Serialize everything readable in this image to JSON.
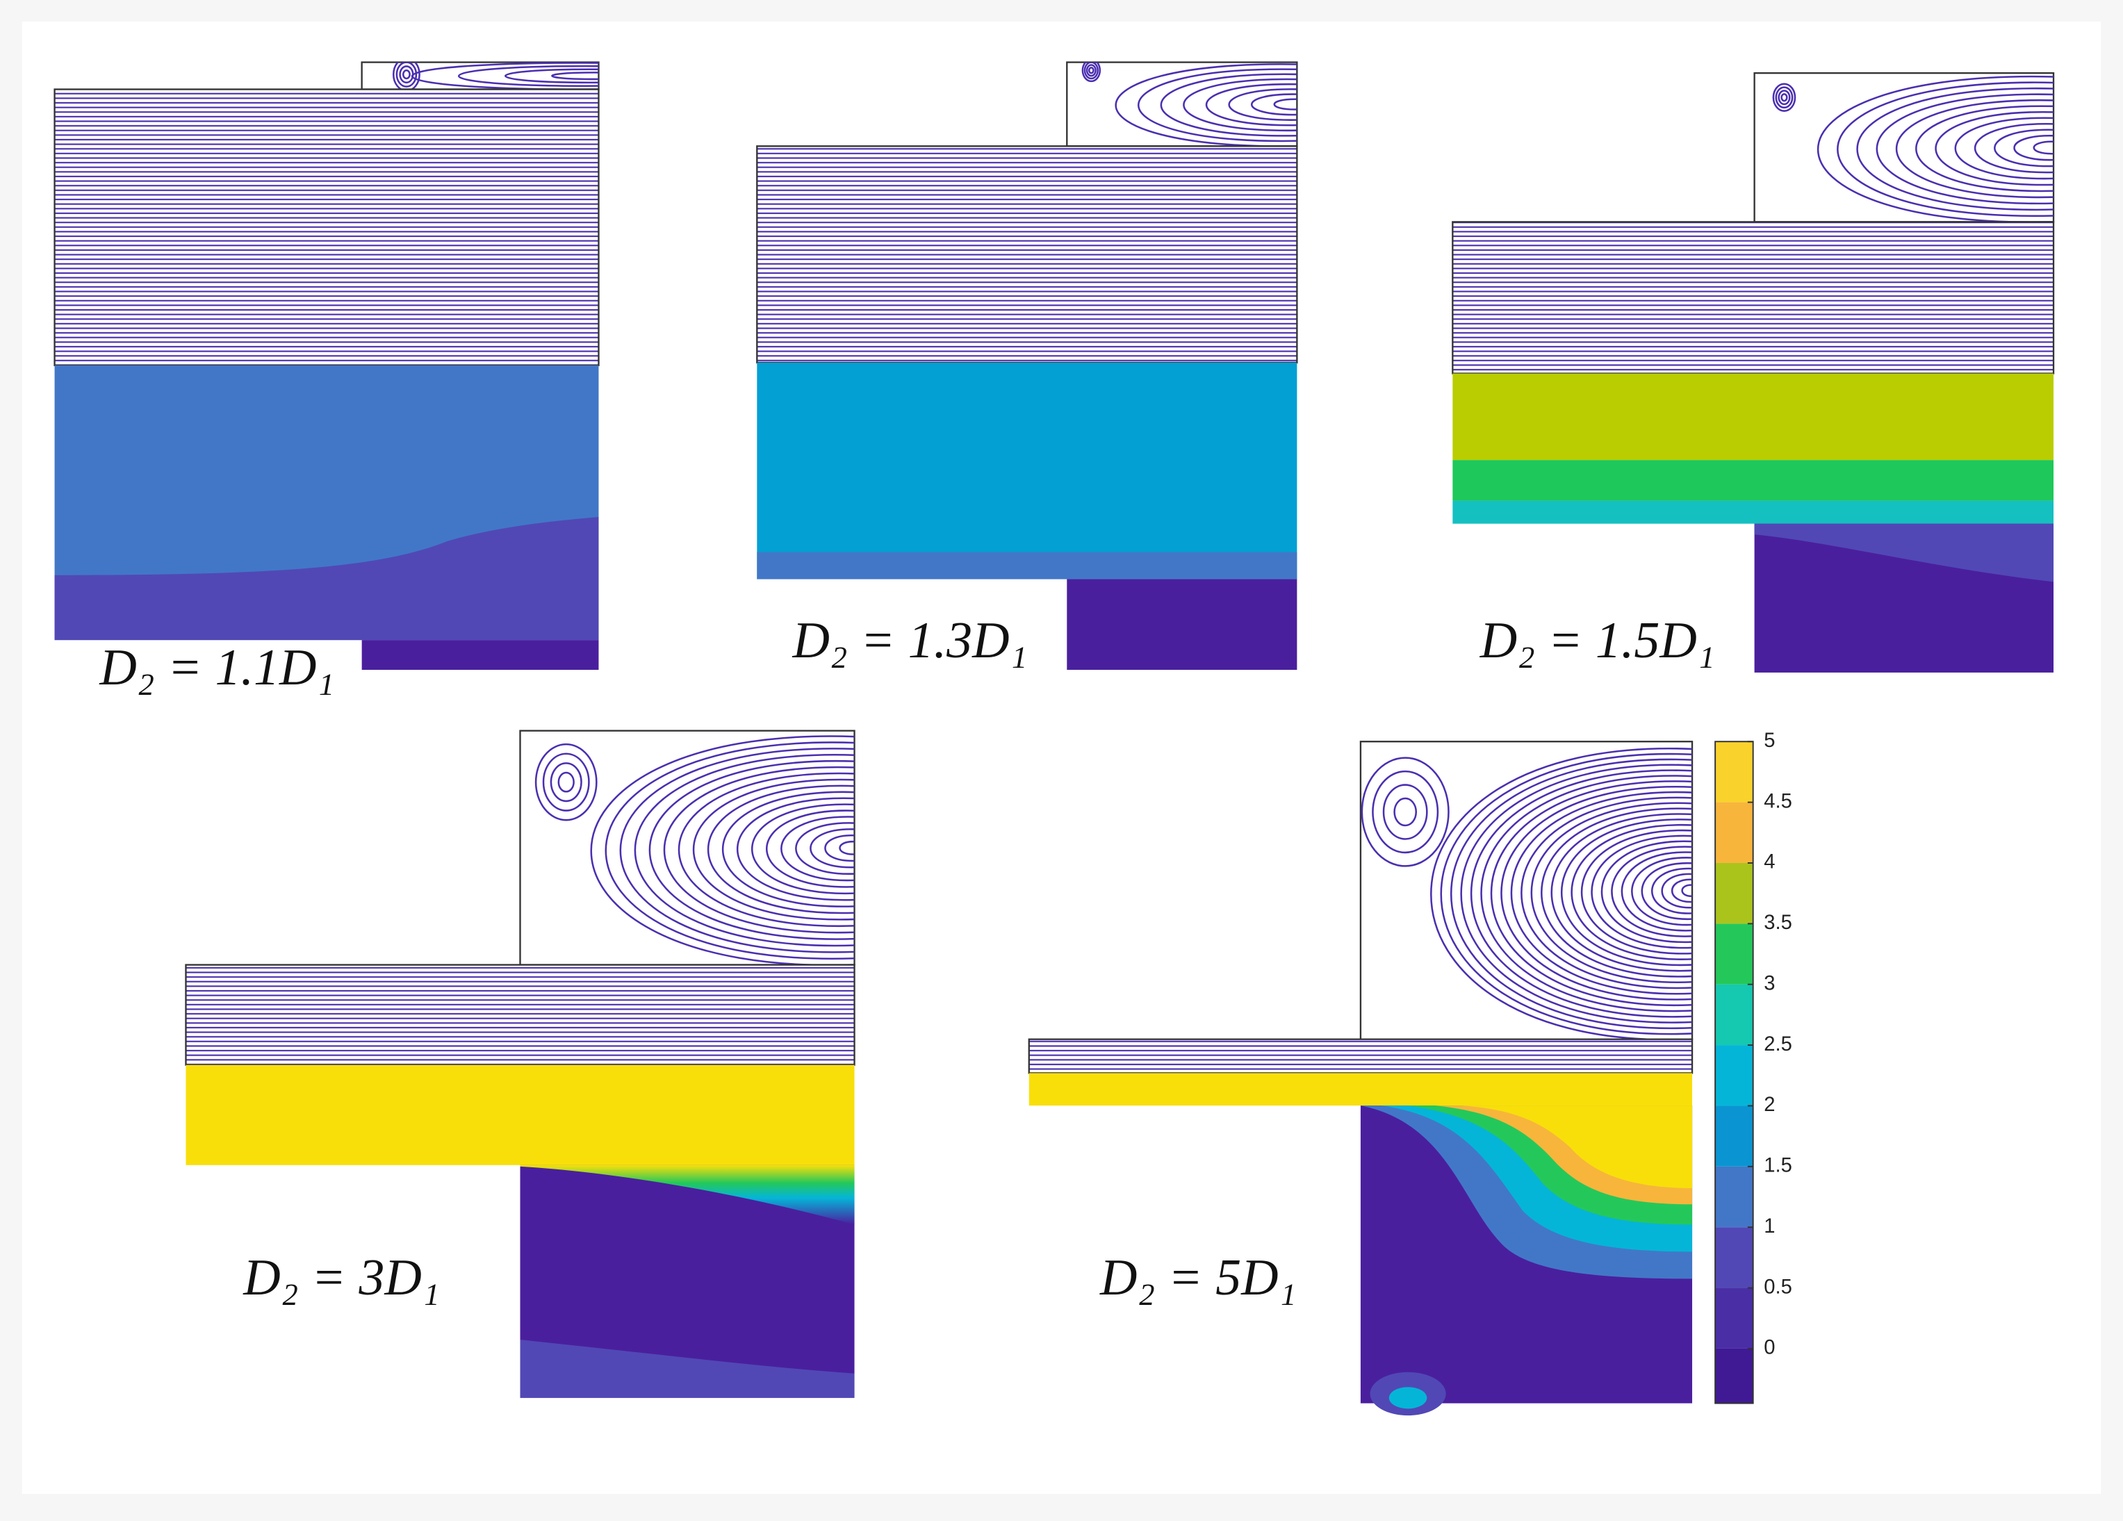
{
  "panels": [
    {
      "label": "D₂ = 1.1D₁"
    },
    {
      "label": "D₂ = 1.3D₁"
    },
    {
      "label": "D₂ = 1.5D₁"
    },
    {
      "label": "D₂ = 3D₁"
    },
    {
      "label": "D₂ = 5D₁"
    }
  ],
  "colorbar": {
    "range": [
      -0.45,
      5
    ],
    "ticks": [
      5,
      4.5,
      4,
      3.5,
      3,
      2.5,
      2,
      1.5,
      1,
      0.5,
      0
    ],
    "colors": [
      "#3f1a94",
      "#4a2ea6",
      "#5148b5",
      "#4277c7",
      "#0a95d2",
      "#05b5d8",
      "#14c9b0",
      "#24c85a",
      "#abc41c",
      "#f7b53c",
      "#f9d32c",
      "#f8df0a"
    ]
  }
}
